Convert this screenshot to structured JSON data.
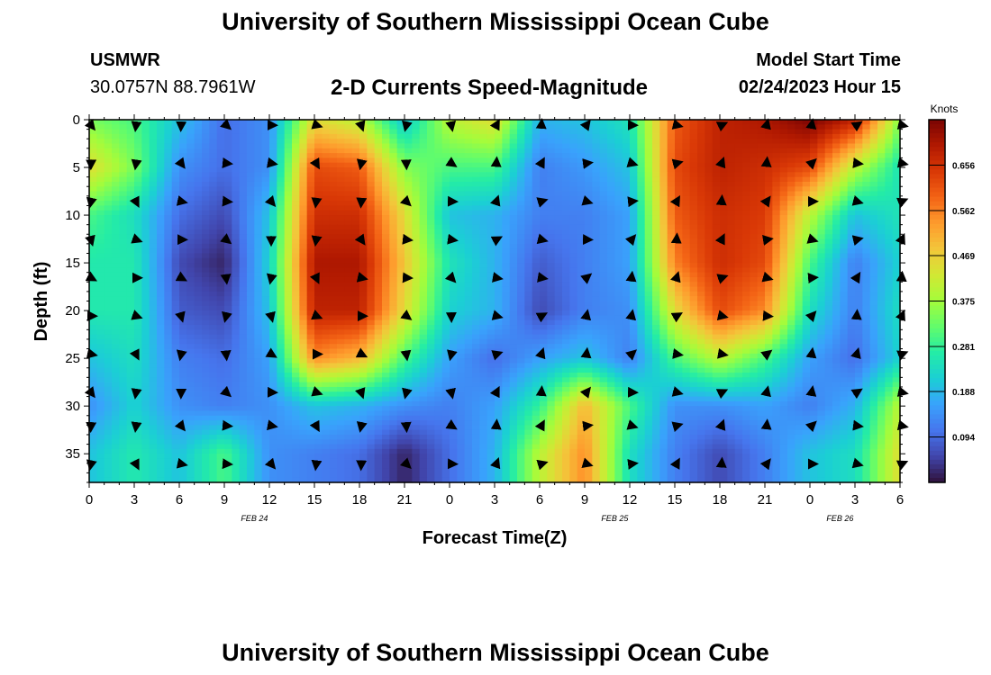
{
  "header": {
    "title": "University of Southern Mississippi Ocean Cube",
    "station_name": "USMWR",
    "station_coords": "30.0757N  88.7961W",
    "plot_title": "2-D Currents Speed-Magnitude",
    "model_label": "Model Start Time",
    "model_time": "02/24/2023 Hour 15"
  },
  "footer": {
    "title": "University of Southern Mississippi Ocean Cube"
  },
  "chart_data": {
    "type": "heatmap",
    "title": "2-D Currents Speed-Magnitude",
    "xlabel": "Forecast Time(Z)",
    "ylabel": "Depth (ft)",
    "x_ticks": [
      "0",
      "3",
      "6",
      "9",
      "12",
      "15",
      "18",
      "21",
      "0",
      "3",
      "6",
      "9",
      "12",
      "15",
      "18",
      "21",
      "0",
      "3",
      "6"
    ],
    "date_labels": [
      {
        "label": "FEB 24",
        "hour_index": 11
      },
      {
        "label": "FEB 25",
        "hour_index": 35
      },
      {
        "label": "FEB 26",
        "hour_index": 50
      }
    ],
    "hours_range": [
      0,
      54
    ],
    "y_ticks": [
      0,
      5,
      10,
      15,
      20,
      25,
      30,
      35
    ],
    "ylim": [
      0,
      38
    ],
    "colorbar": {
      "label": "Knots",
      "ticks": [
        0.094,
        0.188,
        0.281,
        0.375,
        0.469,
        0.562,
        0.656
      ],
      "tick_labels": [
        "0.094",
        "0.188",
        "0.281",
        "0.375",
        "0.469",
        "0.562",
        "0.656"
      ],
      "range": [
        0.0,
        0.75
      ],
      "colors": [
        "#30123b",
        "#4145ab",
        "#4675ed",
        "#39a2fc",
        "#1bcfd4",
        "#24eca6",
        "#61fc6c",
        "#a4fc3b",
        "#d1e834",
        "#f3c63a",
        "#fe9b2d",
        "#f36315",
        "#d93806",
        "#b11901",
        "#7a0403"
      ]
    },
    "speed_field_description": "knots by hour (0-54) and depth (0-38 ft)",
    "speed_rows": {
      "depths_ft": [
        0,
        5,
        10,
        15,
        20,
        25,
        30,
        35
      ],
      "hours": [
        0,
        3,
        6,
        9,
        12,
        15,
        18,
        21,
        24,
        27,
        30,
        33,
        36,
        39,
        42,
        45,
        48,
        51,
        54
      ],
      "values": [
        [
          0.34,
          0.3,
          0.2,
          0.1,
          0.14,
          0.45,
          0.4,
          0.2,
          0.4,
          0.45,
          0.18,
          0.2,
          0.25,
          0.6,
          0.68,
          0.7,
          0.75,
          0.68,
          0.35
        ],
        [
          0.45,
          0.34,
          0.14,
          0.1,
          0.14,
          0.62,
          0.6,
          0.35,
          0.3,
          0.3,
          0.12,
          0.15,
          0.2,
          0.62,
          0.68,
          0.66,
          0.62,
          0.4,
          0.25
        ],
        [
          0.3,
          0.24,
          0.1,
          0.06,
          0.2,
          0.66,
          0.66,
          0.45,
          0.2,
          0.18,
          0.12,
          0.12,
          0.16,
          0.6,
          0.66,
          0.64,
          0.4,
          0.2,
          0.25
        ],
        [
          0.26,
          0.26,
          0.06,
          0.02,
          0.22,
          0.7,
          0.7,
          0.48,
          0.25,
          0.18,
          0.08,
          0.12,
          0.16,
          0.56,
          0.66,
          0.62,
          0.3,
          0.12,
          0.22
        ],
        [
          0.26,
          0.26,
          0.08,
          0.06,
          0.2,
          0.68,
          0.68,
          0.45,
          0.22,
          0.18,
          0.06,
          0.12,
          0.14,
          0.45,
          0.62,
          0.55,
          0.24,
          0.12,
          0.24
        ],
        [
          0.2,
          0.24,
          0.12,
          0.1,
          0.16,
          0.55,
          0.5,
          0.3,
          0.16,
          0.1,
          0.16,
          0.2,
          0.12,
          0.3,
          0.4,
          0.3,
          0.16,
          0.1,
          0.22
        ],
        [
          0.14,
          0.22,
          0.14,
          0.12,
          0.14,
          0.2,
          0.18,
          0.14,
          0.12,
          0.16,
          0.28,
          0.5,
          0.3,
          0.14,
          0.14,
          0.16,
          0.12,
          0.18,
          0.4
        ],
        [
          0.2,
          0.26,
          0.2,
          0.3,
          0.14,
          0.12,
          0.1,
          0.02,
          0.1,
          0.18,
          0.4,
          0.55,
          0.24,
          0.12,
          0.06,
          0.12,
          0.2,
          0.24,
          0.45
        ]
      ]
    }
  }
}
